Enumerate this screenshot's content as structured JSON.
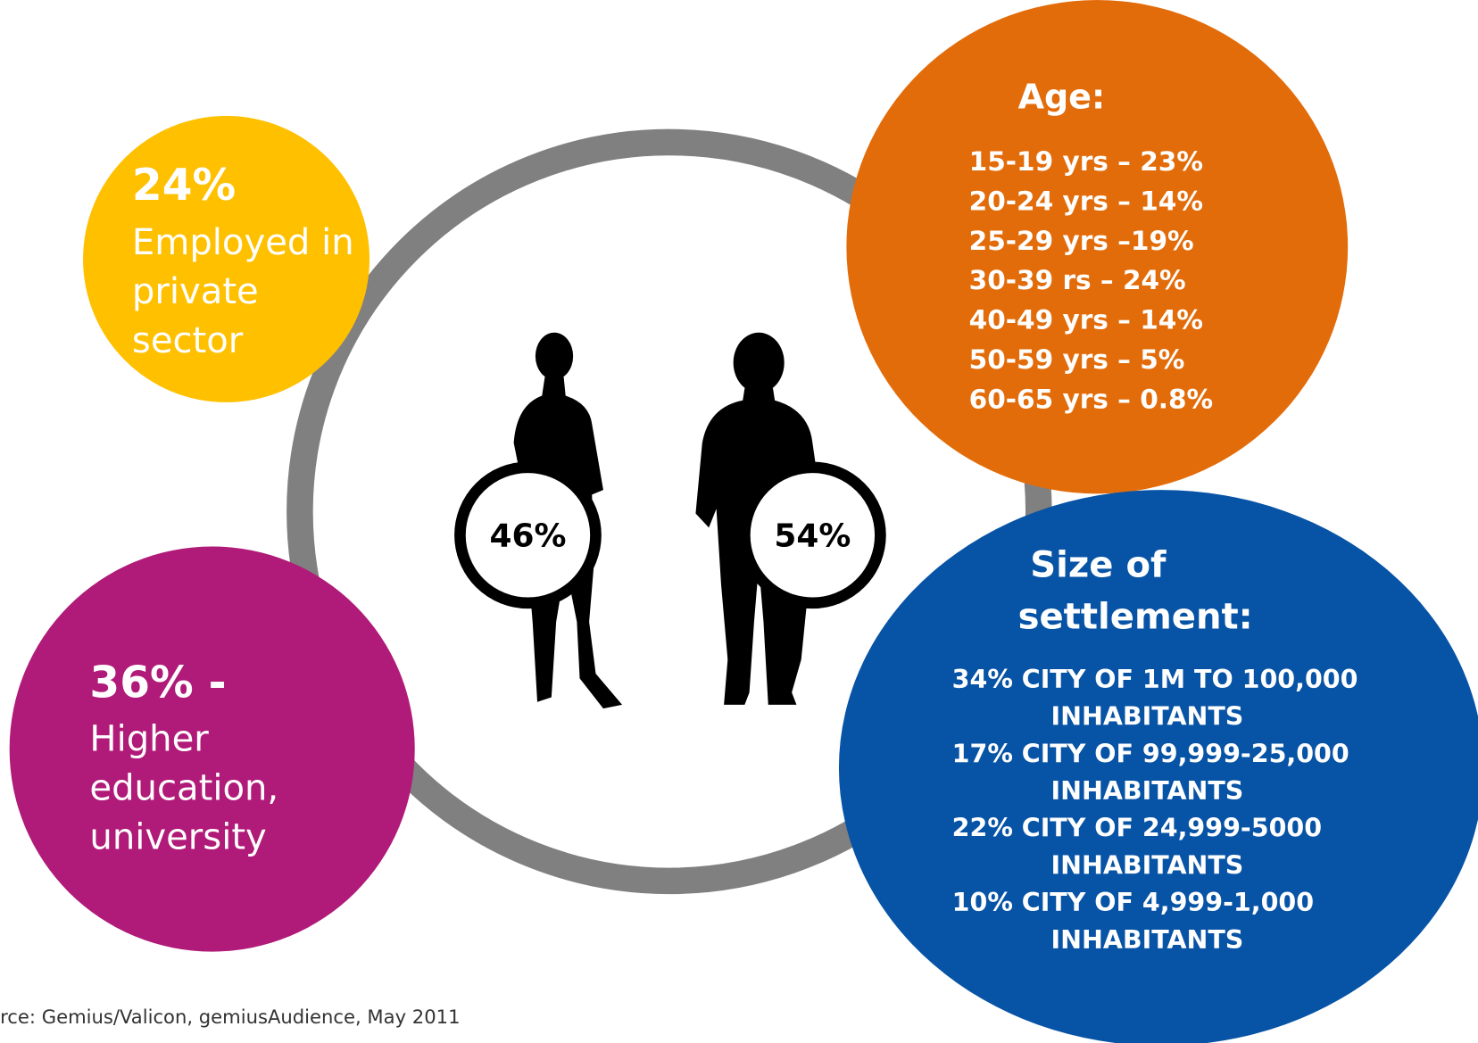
{
  "female_share": "46%",
  "male_share": "54%",
  "employment": {
    "value": "24%",
    "lines": [
      "Employed in",
      "private",
      "sector"
    ]
  },
  "education": {
    "value": "36% -",
    "lines": [
      "Higher",
      "education,",
      "university"
    ]
  },
  "age": {
    "title": "Age:",
    "lines": [
      "15-19 yrs – 23%",
      "20-24 yrs – 14%",
      "25-29 yrs –19%",
      "30-39 rs – 24%",
      "40-49 yrs – 14%",
      "50-59 yrs – 5%",
      "60-65 yrs – 0.8%"
    ]
  },
  "settlement": {
    "title": [
      "Size of",
      "settlement:"
    ],
    "lines": [
      "34% CITY OF 1M TO 100,000",
      "INHABITANTS",
      "17% CITY OF 99,999-25,000",
      "INHABITANTS",
      "22% CITY OF 24,999-5000",
      "INHABITANTS",
      "10% CITY OF 4,999-1,000",
      "INHABITANTS"
    ]
  },
  "source": "rce: Gemius/Valicon, gemiusAudience, May 2011"
}
